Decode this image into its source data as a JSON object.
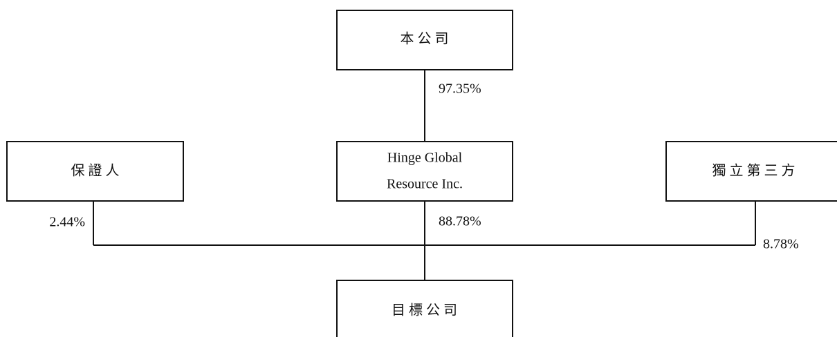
{
  "nodes": [
    {
      "label": "本公司"
    },
    {
      "label": [
        "Hinge Global",
        "Resource Inc."
      ]
    },
    {
      "label": "保證人"
    },
    {
      "label": "獨立第三方"
    },
    {
      "label": "目標公司"
    }
  ],
  "edges": [
    {
      "label": "97.35%"
    },
    {
      "label": "2.44%"
    },
    {
      "label": "88.78%"
    },
    {
      "label": "8.78%"
    }
  ]
}
